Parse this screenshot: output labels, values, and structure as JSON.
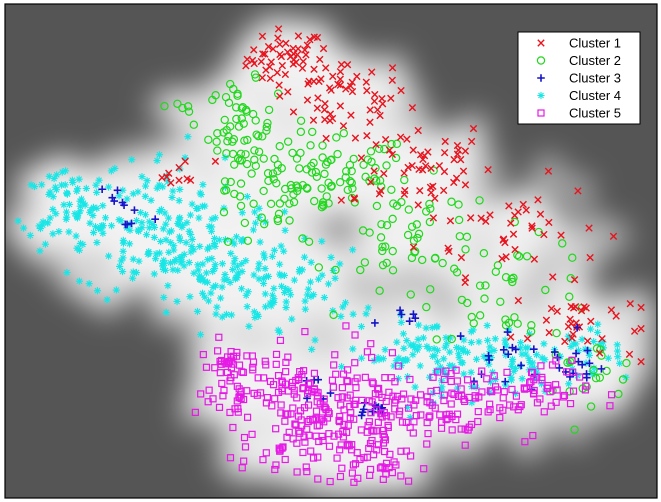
{
  "chart_data": {
    "type": "scatter",
    "title": "",
    "xlabel": "",
    "ylabel": "",
    "xlim": [
      0,
      100
    ],
    "ylim": [
      0,
      100
    ],
    "grid": false,
    "legend_position": "top-right",
    "background": {
      "outer": "#555555",
      "density_glow": "#f2f2f2"
    },
    "series": [
      {
        "name": "Cluster 1",
        "marker": "x",
        "color": "#e8141e",
        "clusters": [
          {
            "cx": 43,
            "cy": 90,
            "sx": 3.0,
            "sy": 3.0,
            "n": 45
          },
          {
            "cx": 52,
            "cy": 82,
            "sx": 5.0,
            "sy": 4.0,
            "n": 55
          },
          {
            "cx": 63,
            "cy": 68,
            "sx": 6.0,
            "sy": 5.0,
            "n": 55
          },
          {
            "cx": 78,
            "cy": 55,
            "sx": 7.0,
            "sy": 5.0,
            "n": 40
          },
          {
            "cx": 88,
            "cy": 35,
            "sx": 5.0,
            "sy": 4.0,
            "n": 35
          },
          {
            "cx": 27,
            "cy": 66,
            "sx": 2.5,
            "sy": 1.5,
            "n": 10
          }
        ]
      },
      {
        "name": "Cluster 2",
        "marker": "o",
        "color": "#22d81e",
        "clusters": [
          {
            "cx": 36,
            "cy": 75,
            "sx": 2.5,
            "sy": 5.0,
            "n": 60
          },
          {
            "cx": 44,
            "cy": 63,
            "sx": 5.0,
            "sy": 6.0,
            "n": 75
          },
          {
            "cx": 53,
            "cy": 66,
            "sx": 4.5,
            "sy": 4.0,
            "n": 40
          },
          {
            "cx": 64,
            "cy": 52,
            "sx": 6.0,
            "sy": 6.0,
            "n": 50
          },
          {
            "cx": 78,
            "cy": 42,
            "sx": 7.0,
            "sy": 5.0,
            "n": 40
          },
          {
            "cx": 90,
            "cy": 25,
            "sx": 4.0,
            "sy": 3.0,
            "n": 20
          },
          {
            "cx": 27,
            "cy": 80,
            "sx": 1.2,
            "sy": 0.6,
            "n": 5
          }
        ]
      },
      {
        "name": "Cluster 3",
        "marker": "+",
        "color": "#1414c8",
        "clusters": [
          {
            "cx": 16,
            "cy": 61,
            "sx": 1.5,
            "sy": 1.5,
            "n": 6
          },
          {
            "cx": 19,
            "cy": 55,
            "sx": 1.2,
            "sy": 2.0,
            "n": 5
          },
          {
            "cx": 56,
            "cy": 17,
            "sx": 1.5,
            "sy": 1.0,
            "n": 12
          },
          {
            "cx": 78,
            "cy": 28,
            "sx": 5.0,
            "sy": 3.0,
            "n": 20
          },
          {
            "cx": 88,
            "cy": 26,
            "sx": 3.0,
            "sy": 2.0,
            "n": 10
          },
          {
            "cx": 47,
            "cy": 20,
            "sx": 2.0,
            "sy": 2.0,
            "n": 6
          },
          {
            "cx": 62,
            "cy": 35,
            "sx": 2.5,
            "sy": 2.0,
            "n": 6
          }
        ]
      },
      {
        "name": "Cluster 4",
        "marker": "*",
        "color": "#19e6e6",
        "clusters": [
          {
            "cx": 12,
            "cy": 58,
            "sx": 5.0,
            "sy": 5.0,
            "n": 70
          },
          {
            "cx": 24,
            "cy": 55,
            "sx": 6.0,
            "sy": 8.0,
            "n": 120
          },
          {
            "cx": 33,
            "cy": 46,
            "sx": 7.0,
            "sy": 6.0,
            "n": 120
          },
          {
            "cx": 45,
            "cy": 42,
            "sx": 5.0,
            "sy": 4.0,
            "n": 50
          },
          {
            "cx": 65,
            "cy": 28,
            "sx": 6.0,
            "sy": 4.0,
            "n": 90
          },
          {
            "cx": 80,
            "cy": 27,
            "sx": 6.0,
            "sy": 3.0,
            "n": 70
          },
          {
            "cx": 92,
            "cy": 30,
            "sx": 3.0,
            "sy": 2.0,
            "n": 20
          },
          {
            "cx": 8,
            "cy": 65,
            "sx": 1.5,
            "sy": 1.5,
            "n": 10
          },
          {
            "cx": 6,
            "cy": 55,
            "sx": 1.5,
            "sy": 1.0,
            "n": 8
          }
        ]
      },
      {
        "name": "Cluster 5",
        "marker": "s",
        "color": "#e619e6",
        "clusters": [
          {
            "cx": 37,
            "cy": 22,
            "sx": 4.0,
            "sy": 4.5,
            "n": 70
          },
          {
            "cx": 48,
            "cy": 17,
            "sx": 5.0,
            "sy": 6.0,
            "n": 110
          },
          {
            "cx": 58,
            "cy": 16,
            "sx": 5.0,
            "sy": 5.0,
            "n": 90
          },
          {
            "cx": 70,
            "cy": 19,
            "sx": 6.0,
            "sy": 4.0,
            "n": 80
          },
          {
            "cx": 82,
            "cy": 21,
            "sx": 4.0,
            "sy": 3.0,
            "n": 40
          },
          {
            "cx": 44,
            "cy": 8,
            "sx": 4.0,
            "sy": 3.0,
            "n": 30
          },
          {
            "cx": 56,
            "cy": 5,
            "sx": 4.0,
            "sy": 2.0,
            "n": 25
          },
          {
            "cx": 34,
            "cy": 28,
            "sx": 2.0,
            "sy": 1.5,
            "n": 15
          }
        ]
      }
    ]
  }
}
